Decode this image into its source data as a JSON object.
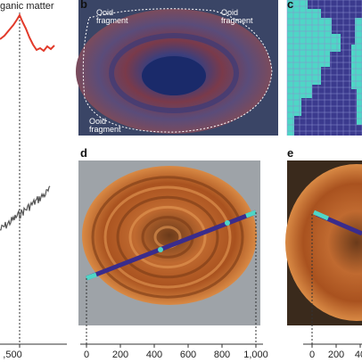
{
  "panels": {
    "a": {
      "label_text": "ganic matter",
      "axis_label": ",500"
    },
    "b": {
      "letter": "b",
      "annotations": [
        "Ooid fragment",
        "Ooid fragment",
        "Ooid fragment"
      ]
    },
    "c": {
      "letter": "c"
    },
    "d": {
      "letter": "d",
      "x_ticks": [
        "0",
        "200",
        "400",
        "600",
        "800",
        "1,000"
      ]
    },
    "e": {
      "letter": "e",
      "x_ticks": [
        "0",
        "200",
        "40"
      ]
    }
  }
}
